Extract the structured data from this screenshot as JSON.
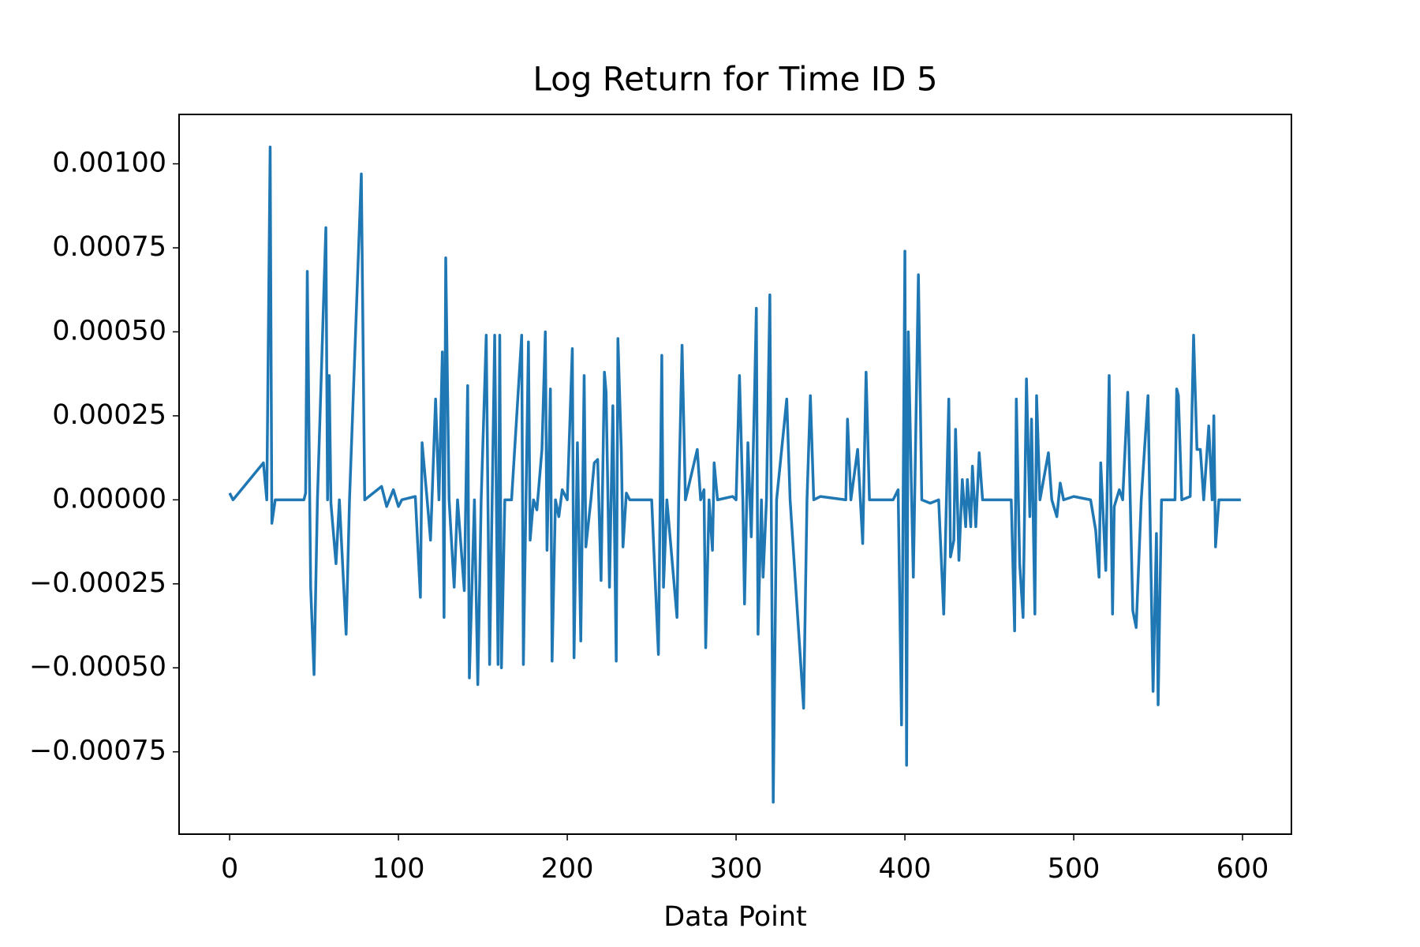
{
  "chart_data": {
    "type": "line",
    "title": "Log Return for Time ID 5",
    "x_label": "Data Point",
    "xlim": [
      -29.95,
      628.95
    ],
    "ylim": [
      -0.000995,
      0.001147
    ],
    "xticks": [
      0,
      100,
      200,
      300,
      400,
      500,
      600
    ],
    "yticks": [
      {
        "value": -0.00075,
        "label": "−0.00075"
      },
      {
        "value": -0.0005,
        "label": "−0.00050"
      },
      {
        "value": -0.00025,
        "label": "−0.00025"
      },
      {
        "value": 0,
        "label": "0.00000"
      },
      {
        "value": 0.00025,
        "label": "0.00025"
      },
      {
        "value": 0.0005,
        "label": "0.00050"
      },
      {
        "value": 0.00075,
        "label": "0.00075"
      },
      {
        "value": 0.001,
        "label": "0.00100"
      }
    ],
    "series": [
      {
        "color": "#1f77b4",
        "x": [
          0,
          2,
          20,
          22,
          24,
          25,
          27,
          44,
          45,
          46,
          48,
          50,
          52,
          57,
          58,
          59,
          60,
          63,
          65,
          69,
          71,
          78,
          80,
          90,
          93,
          97,
          100,
          102,
          110,
          113,
          114,
          117,
          119,
          122,
          124,
          126,
          127,
          128,
          130,
          133,
          135,
          139,
          141,
          142,
          145,
          147,
          149,
          152,
          154,
          157,
          159,
          160,
          161,
          163,
          167,
          173,
          174,
          177,
          178,
          180,
          182,
          185,
          187,
          188,
          190,
          191,
          193,
          195,
          197,
          200,
          203,
          204,
          206,
          208,
          210,
          211,
          214,
          216,
          218,
          220,
          222,
          223,
          225,
          227,
          229,
          230,
          232,
          233,
          235,
          237,
          250,
          254,
          256,
          257,
          259,
          265,
          266,
          268,
          270,
          277,
          279,
          281,
          282,
          284,
          286,
          287,
          289,
          298,
          300,
          302,
          304,
          305,
          307,
          309,
          311,
          312,
          313,
          315,
          316,
          318,
          320,
          322,
          324,
          330,
          332,
          340,
          342,
          344,
          346,
          350,
          365,
          366,
          368,
          372,
          375,
          377,
          379,
          393,
          396,
          398,
          400,
          401,
          402,
          404,
          405,
          408,
          410,
          415,
          420,
          423,
          426,
          427,
          429,
          430,
          432,
          434,
          436,
          437,
          439,
          440,
          442,
          444,
          446,
          463,
          465,
          466,
          468,
          470,
          472,
          474,
          475,
          477,
          478,
          480,
          485,
          487,
          490,
          492,
          494,
          500,
          510,
          513,
          515,
          516,
          519,
          521,
          523,
          524,
          527,
          529,
          532,
          535,
          537,
          540,
          544,
          547,
          549,
          550,
          552,
          560,
          561,
          562,
          564,
          569,
          571,
          573,
          575,
          577,
          580,
          582,
          583,
          584,
          586,
          599
        ],
        "values": [
          2e-05,
          0,
          0.00011,
          0,
          0.00105,
          -7e-05,
          0,
          0,
          2e-05,
          0.00068,
          -0.00026,
          -0.00052,
          0,
          0.00081,
          0,
          0.00037,
          -1e-05,
          -0.00019,
          0,
          -0.0004,
          0,
          0.00097,
          0,
          4e-05,
          -2e-05,
          3e-05,
          -2e-05,
          0,
          1e-05,
          -0.00029,
          0.00017,
          0,
          -0.00012,
          0.0003,
          0,
          0.00044,
          -0.00035,
          0.00072,
          0,
          -0.00026,
          0,
          -0.00027,
          0.00034,
          -0.00053,
          0,
          -0.00055,
          0,
          0.00049,
          -0.00049,
          0.00049,
          -0.00049,
          0.00049,
          -0.0005,
          0,
          0,
          0.00049,
          -0.00049,
          0.00047,
          -0.00012,
          0,
          -3e-05,
          0.00015,
          0.0005,
          -0.00015,
          0.00033,
          -0.00048,
          0,
          -5e-05,
          3e-05,
          0,
          0.00045,
          -0.00047,
          0.00017,
          -0.00042,
          0.00037,
          -0.00014,
          0,
          0.00011,
          0.00012,
          -0.00024,
          0.00038,
          0.00032,
          -0.00026,
          0.00028,
          -0.00048,
          0.00048,
          0.00015,
          -0.00014,
          2e-05,
          0,
          0,
          -0.00046,
          0.00043,
          -0.00026,
          0,
          -0.00035,
          0,
          0.00046,
          0,
          0.00015,
          0,
          3e-05,
          -0.00044,
          0,
          -0.00015,
          0.00011,
          0,
          1e-05,
          0,
          0.00037,
          0,
          -0.00031,
          0.00017,
          -0.00011,
          0.00033,
          0.00057,
          -0.0004,
          0,
          -0.00023,
          0,
          0.00061,
          -0.0009,
          0,
          0.0003,
          0,
          -0.00062,
          0,
          0.00031,
          0,
          1e-05,
          0,
          0.00024,
          0,
          0.00015,
          -0.00013,
          0.00038,
          0,
          0,
          3e-05,
          -0.00067,
          0.00074,
          -0.00079,
          0.0005,
          0,
          -0.00023,
          0.00067,
          0,
          -1e-05,
          0,
          -0.00034,
          0.0003,
          -0.00017,
          -0.00012,
          0.00021,
          -0.00018,
          6e-05,
          -8e-05,
          6e-05,
          -8e-05,
          0.0001,
          -8e-05,
          0.00014,
          0,
          0,
          -0.00039,
          0.0003,
          -0.00019,
          -0.00035,
          0.00036,
          -5e-05,
          0.00024,
          -0.00034,
          0.00031,
          0,
          0.00014,
          0,
          -5e-05,
          5e-05,
          0,
          1e-05,
          0,
          -9e-05,
          -0.00023,
          0.00011,
          -0.00021,
          0.00037,
          -0.00034,
          -2e-05,
          3e-05,
          0,
          0.00032,
          -0.00033,
          -0.00038,
          0,
          0.00031,
          -0.00057,
          -0.0001,
          -0.00061,
          0,
          0,
          0.00033,
          0.00031,
          0,
          1e-05,
          0.00049,
          0.00015,
          0.00015,
          0,
          0.00022,
          0,
          0.00025,
          -0.00014,
          0,
          0
        ]
      }
    ]
  }
}
